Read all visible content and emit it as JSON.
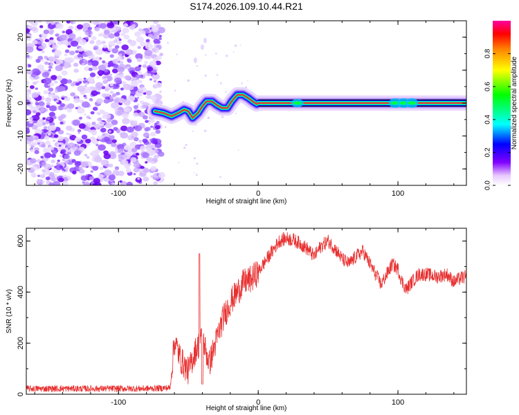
{
  "title": "S174.2026.109.10.44.R21",
  "chart_data": [
    {
      "type": "heatmap",
      "name": "spectrogram",
      "xlabel": "Height of straight line (km)",
      "ylabel": "Frequency (Hz)",
      "xlim": [
        -166,
        149
      ],
      "ylim": [
        -25,
        25
      ],
      "xticks": [
        -100,
        0,
        100
      ],
      "yticks": [
        -20,
        -10,
        0,
        10,
        20
      ],
      "noise_region_x": [
        -166,
        -72
      ],
      "signal_start_x": -74,
      "signal_ridge": [
        [
          -74,
          -2.5
        ],
        [
          -68,
          -3
        ],
        [
          -62,
          -4
        ],
        [
          -57,
          -3
        ],
        [
          -53,
          -2
        ],
        [
          -50,
          -2.5
        ],
        [
          -47,
          -4.5
        ],
        [
          -43,
          -3
        ],
        [
          -40,
          -1
        ],
        [
          -37,
          0.5
        ],
        [
          -33,
          0.5
        ],
        [
          -30,
          -0.5
        ],
        [
          -26,
          -1.5
        ],
        [
          -22,
          -1.5
        ],
        [
          -19,
          0.5
        ],
        [
          -15,
          2.5
        ],
        [
          -11,
          2.5
        ],
        [
          -7,
          1.5
        ],
        [
          -4,
          0.5
        ],
        [
          -1,
          -0.3
        ],
        [
          0,
          0
        ],
        [
          149,
          0
        ]
      ],
      "colorbar": {
        "label": "Normalized spectral amplitude",
        "range": [
          0,
          1
        ],
        "ticks": [
          0.0,
          0.2,
          0.4,
          0.6,
          0.8
        ]
      }
    },
    {
      "type": "line",
      "name": "snr",
      "xlabel": "Height of straight line (km)",
      "ylabel": "SNR (10 * v/v)",
      "xlim": [
        -166,
        149
      ],
      "ylim": [
        0,
        650
      ],
      "xticks": [
        -100,
        0,
        100
      ],
      "yticks": [
        0,
        200,
        400,
        600
      ],
      "color": "#e83030",
      "envelope_points": [
        [
          -166,
          22
        ],
        [
          -80,
          22
        ],
        [
          -63,
          25
        ],
        [
          -60,
          210
        ],
        [
          -55,
          130
        ],
        [
          -50,
          90
        ],
        [
          -45,
          170
        ],
        [
          -40,
          220
        ],
        [
          -35,
          120
        ],
        [
          -30,
          210
        ],
        [
          -25,
          300
        ],
        [
          -20,
          360
        ],
        [
          -15,
          400
        ],
        [
          -10,
          440
        ],
        [
          -5,
          450
        ],
        [
          0,
          480
        ],
        [
          5,
          520
        ],
        [
          10,
          560
        ],
        [
          15,
          600
        ],
        [
          20,
          610
        ],
        [
          25,
          605
        ],
        [
          30,
          590
        ],
        [
          35,
          570
        ],
        [
          40,
          540
        ],
        [
          45,
          580
        ],
        [
          50,
          600
        ],
        [
          55,
          570
        ],
        [
          60,
          530
        ],
        [
          65,
          510
        ],
        [
          70,
          540
        ],
        [
          75,
          560
        ],
        [
          80,
          510
        ],
        [
          85,
          460
        ],
        [
          88,
          430
        ],
        [
          92,
          470
        ],
        [
          96,
          510
        ],
        [
          100,
          490
        ],
        [
          103,
          440
        ],
        [
          106,
          410
        ],
        [
          110,
          440
        ],
        [
          115,
          470
        ],
        [
          120,
          470
        ],
        [
          128,
          460
        ],
        [
          135,
          470
        ],
        [
          140,
          440
        ],
        [
          145,
          455
        ],
        [
          149,
          460
        ]
      ]
    }
  ]
}
